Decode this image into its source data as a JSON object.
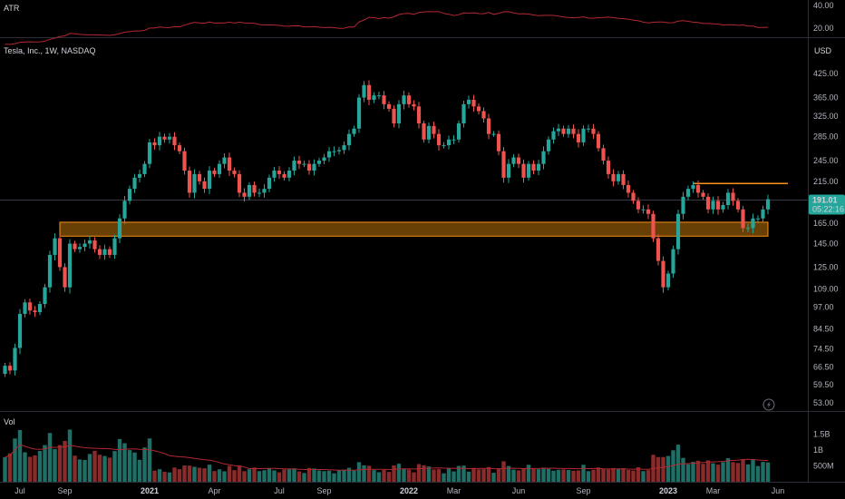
{
  "header": {
    "symbol_label": "Tesla, Inc., 1W, NASDAQ",
    "atr_label": "ATR",
    "volume_label": "Vol",
    "currency_label": "USD"
  },
  "price_badge": {
    "price": "191.01",
    "countdown": "05:22:16",
    "color": "#26a69a"
  },
  "colors": {
    "up": "#26a69a",
    "down": "#ef5350",
    "vol_up": "#1f6f66",
    "vol_down": "#8a2b2b",
    "zone_fill": "#7a4a06",
    "zone_stroke": "#f7931a",
    "resistance": "#f7931a",
    "atr_line": "#b22833",
    "vol_ma_line": "#b22833",
    "background": "#000000"
  },
  "chart_data": {
    "type": "candlestick",
    "title": "Tesla, Inc., 1W, NASDAQ",
    "price_axis_labels": [
      "425.00",
      "365.00",
      "325.00",
      "285.00",
      "245.00",
      "215.00",
      "191.01",
      "165.00",
      "145.00",
      "125.00",
      "109.00",
      "97.00",
      "84.50",
      "74.50",
      "66.50",
      "59.50",
      "53.00"
    ],
    "atr_axis_labels": [
      "40.00",
      "20.00"
    ],
    "volume_axis_labels": [
      "1.5B",
      "1B",
      "500M"
    ],
    "time_axis_labels": [
      "Jul",
      "Sep",
      "2021",
      "Apr",
      "Jul",
      "Sep",
      "2022",
      "Mar",
      "Jun",
      "Sep",
      "2023",
      "Mar",
      "Jun"
    ],
    "time_axis_label_dates": [
      "2020-07-06",
      "2020-09-07",
      "2021-01-04",
      "2021-04-05",
      "2021-07-05",
      "2021-09-06",
      "2022-01-03",
      "2022-03-07",
      "2022-06-06",
      "2022-09-05",
      "2023-01-02",
      "2023-03-06",
      "2023-06-05"
    ],
    "last_price": 191.01,
    "support_zone": {
      "low": 152,
      "high": 166,
      "from": "2020-08-31",
      "to": "2023-05-22"
    },
    "resistance_line": {
      "price": 212,
      "from": "2023-02-06",
      "to": "2023-06-19"
    },
    "weeks": [
      "2020-06-15",
      "2020-06-22",
      "2020-06-29",
      "2020-07-06",
      "2020-07-13",
      "2020-07-20",
      "2020-07-27",
      "2020-08-03",
      "2020-08-10",
      "2020-08-17",
      "2020-08-24",
      "2020-08-31",
      "2020-09-07",
      "2020-09-14",
      "2020-09-21",
      "2020-09-28",
      "2020-10-05",
      "2020-10-12",
      "2020-10-19",
      "2020-10-26",
      "2020-11-02",
      "2020-11-09",
      "2020-11-16",
      "2020-11-23",
      "2020-11-30",
      "2020-12-07",
      "2020-12-14",
      "2020-12-21",
      "2020-12-28",
      "2021-01-04",
      "2021-01-11",
      "2021-01-18",
      "2021-01-25",
      "2021-02-01",
      "2021-02-08",
      "2021-02-15",
      "2021-02-22",
      "2021-03-01",
      "2021-03-08",
      "2021-03-15",
      "2021-03-22",
      "2021-03-29",
      "2021-04-05",
      "2021-04-12",
      "2021-04-19",
      "2021-04-26",
      "2021-05-03",
      "2021-05-10",
      "2021-05-17",
      "2021-05-24",
      "2021-05-31",
      "2021-06-07",
      "2021-06-14",
      "2021-06-21",
      "2021-06-28",
      "2021-07-05",
      "2021-07-12",
      "2021-07-19",
      "2021-07-26",
      "2021-08-02",
      "2021-08-09",
      "2021-08-16",
      "2021-08-23",
      "2021-08-30",
      "2021-09-06",
      "2021-09-13",
      "2021-09-20",
      "2021-09-27",
      "2021-10-04",
      "2021-10-11",
      "2021-10-18",
      "2021-10-25",
      "2021-11-01",
      "2021-11-08",
      "2021-11-15",
      "2021-11-22",
      "2021-11-29",
      "2021-12-06",
      "2021-12-13",
      "2021-12-20",
      "2021-12-27",
      "2022-01-03",
      "2022-01-10",
      "2022-01-17",
      "2022-01-24",
      "2022-01-31",
      "2022-02-07",
      "2022-02-14",
      "2022-02-21",
      "2022-02-28",
      "2022-03-07",
      "2022-03-14",
      "2022-03-21",
      "2022-03-28",
      "2022-04-04",
      "2022-04-11",
      "2022-04-18",
      "2022-04-25",
      "2022-05-02",
      "2022-05-09",
      "2022-05-16",
      "2022-05-23",
      "2022-05-30",
      "2022-06-06",
      "2022-06-13",
      "2022-06-20",
      "2022-06-27",
      "2022-07-04",
      "2022-07-11",
      "2022-07-18",
      "2022-07-25",
      "2022-08-01",
      "2022-08-08",
      "2022-08-15",
      "2022-08-22",
      "2022-08-29",
      "2022-09-05",
      "2022-09-12",
      "2022-09-19",
      "2022-09-26",
      "2022-10-03",
      "2022-10-10",
      "2022-10-17",
      "2022-10-24",
      "2022-10-31",
      "2022-11-07",
      "2022-11-14",
      "2022-11-21",
      "2022-11-28",
      "2022-12-05",
      "2022-12-12",
      "2022-12-19",
      "2022-12-26",
      "2023-01-02",
      "2023-01-09",
      "2023-01-16",
      "2023-01-23",
      "2023-01-30",
      "2023-02-06",
      "2023-02-13",
      "2023-02-20",
      "2023-02-27",
      "2023-03-06",
      "2023-03-13",
      "2023-03-20",
      "2023-03-27",
      "2023-04-03",
      "2023-04-10",
      "2023-04-17",
      "2023-04-24",
      "2023-05-01",
      "2023-05-08",
      "2023-05-15",
      "2023-05-22"
    ],
    "close": [
      67,
      65,
      75,
      93,
      100,
      95,
      94,
      99,
      110,
      135,
      150,
      125,
      110,
      145,
      140,
      142,
      145,
      148,
      140,
      135,
      140,
      135,
      150,
      170,
      190,
      205,
      220,
      225,
      240,
      275,
      270,
      285,
      280,
      285,
      270,
      260,
      230,
      200,
      225,
      215,
      205,
      230,
      225,
      240,
      250,
      230,
      225,
      200,
      195,
      210,
      200,
      200,
      205,
      220,
      230,
      225,
      220,
      230,
      245,
      240,
      240,
      230,
      240,
      245,
      250,
      260,
      260,
      262,
      270,
      290,
      300,
      365,
      395,
      360,
      370,
      370,
      350,
      340,
      310,
      350,
      370,
      350,
      345,
      310,
      280,
      305,
      290,
      270,
      270,
      280,
      280,
      310,
      350,
      360,
      345,
      335,
      320,
      290,
      290,
      260,
      220,
      240,
      250,
      240,
      220,
      240,
      230,
      240,
      260,
      280,
      295,
      300,
      290,
      300,
      290,
      275,
      300,
      300,
      290,
      265,
      245,
      225,
      215,
      225,
      210,
      200,
      190,
      180,
      180,
      175,
      150,
      130,
      110,
      120,
      140,
      175,
      195,
      205,
      210,
      200,
      195,
      180,
      190,
      180,
      185,
      200,
      190,
      180,
      160,
      160,
      170,
      170,
      180,
      192
    ]
  }
}
